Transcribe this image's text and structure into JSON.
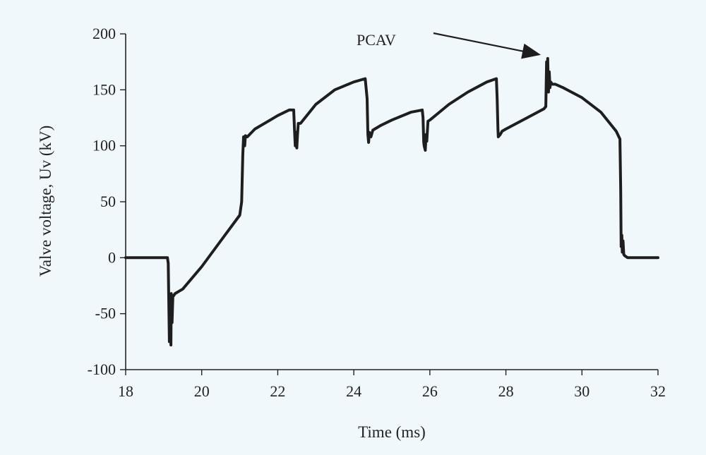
{
  "chart_data": {
    "type": "line",
    "title": "",
    "xlabel": "Time (ms)",
    "ylabel": "Valve voltage, Uv (kV)",
    "xlim": [
      18,
      32
    ],
    "ylim": [
      -100,
      200
    ],
    "x_ticks": [
      18,
      20,
      22,
      24,
      26,
      28,
      30,
      32
    ],
    "y_ticks": [
      -100,
      -50,
      0,
      50,
      100,
      150,
      200
    ],
    "x_tick_labels": [
      "18",
      "20",
      "22",
      "24",
      "26",
      "28",
      "30",
      "32"
    ],
    "y_tick_labels": [
      "-100",
      "-50",
      "0",
      "50",
      "100",
      "150",
      "200"
    ],
    "grid": false,
    "legend": "none",
    "line_color": "#1e1e1e",
    "series": [
      {
        "x": [
          18.0,
          19.1,
          19.12,
          19.15,
          19.16,
          19.19,
          19.2,
          19.22,
          19.24,
          19.3,
          19.5,
          20.0,
          20.5,
          21.0,
          21.05,
          21.08,
          21.1,
          21.13,
          21.15,
          21.2,
          21.4,
          21.8,
          22.0,
          22.3,
          22.42,
          22.44,
          22.46,
          22.48,
          22.5,
          22.52,
          22.54,
          22.6,
          23.0,
          23.5,
          24.0,
          24.3,
          24.35,
          24.37,
          24.39,
          24.41,
          24.45,
          24.5,
          24.7,
          25.0,
          25.5,
          25.8,
          25.82,
          25.84,
          25.85,
          25.88,
          25.9,
          25.92,
          25.95,
          26.0,
          26.5,
          27.0,
          27.5,
          27.75,
          27.77,
          27.79,
          27.8,
          27.85,
          27.9,
          28.0,
          28.5,
          29.0,
          29.05,
          29.07,
          29.08,
          29.1,
          29.12,
          29.14,
          29.16,
          29.18,
          29.22,
          29.3,
          29.5,
          30.0,
          30.5,
          30.9,
          31.0,
          31.02,
          31.03,
          31.05,
          31.06,
          31.08,
          31.1,
          31.12,
          31.2,
          31.4,
          32.0
        ],
        "y": [
          0,
          0,
          -5,
          -75,
          -35,
          -78,
          -32,
          -58,
          -35,
          -32,
          -28,
          -8,
          15,
          38,
          50,
          92,
          108,
          100,
          109,
          108,
          115,
          123,
          127,
          132,
          132,
          115,
          100,
          112,
          98,
          110,
          120,
          120,
          137,
          150,
          157,
          160,
          142,
          110,
          103,
          112,
          108,
          114,
          118,
          123,
          130,
          132,
          125,
          103,
          100,
          96,
          110,
          104,
          122,
          123,
          137,
          148,
          157,
          160,
          142,
          115,
          108,
          110,
          113,
          115,
          124,
          133,
          135,
          175,
          162,
          178,
          148,
          166,
          152,
          157,
          155,
          155,
          152,
          143,
          130,
          113,
          106,
          60,
          10,
          20,
          5,
          15,
          3,
          2,
          0,
          0,
          0
        ]
      }
    ],
    "annotations": [
      {
        "text": "PCAV",
        "points_to": [
          29.1,
          178
        ]
      }
    ]
  }
}
